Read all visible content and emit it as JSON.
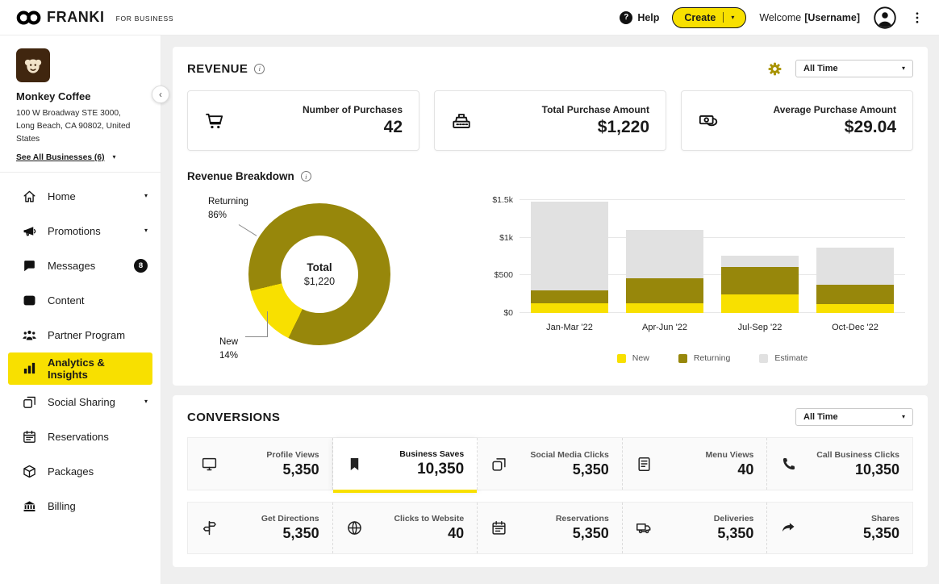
{
  "topbar": {
    "brand": "FRANKI",
    "tagline": "FOR BUSINESS",
    "help_label": "Help",
    "create_label": "Create",
    "welcome_prefix": "Welcome",
    "username": "[Username]"
  },
  "sidebar": {
    "business": {
      "name": "Monkey Coffee",
      "address_lines": [
        "100 W Broadway STE 3000,",
        "Long Beach, CA 90802, United",
        "States"
      ],
      "see_all": "See All Businesses (6)"
    },
    "items": [
      {
        "label": "Home",
        "icon": "home",
        "chevron": true
      },
      {
        "label": "Promotions",
        "icon": "megaphone",
        "chevron": true
      },
      {
        "label": "Messages",
        "icon": "chat",
        "badge": "8"
      },
      {
        "label": "Content",
        "icon": "content"
      },
      {
        "label": "Partner Program",
        "icon": "people"
      },
      {
        "label": "Analytics & Insights",
        "icon": "chart",
        "active": true
      },
      {
        "label": "Social Sharing",
        "icon": "social",
        "chevron": true
      },
      {
        "label": "Reservations",
        "icon": "calendar"
      },
      {
        "label": "Packages",
        "icon": "package"
      },
      {
        "label": "Billing",
        "icon": "billing"
      }
    ]
  },
  "revenue": {
    "title": "REVENUE",
    "time_filter": "All Time",
    "stats": [
      {
        "label": "Number of Purchases",
        "value": "42",
        "icon": "cart"
      },
      {
        "label": "Total Purchase Amount",
        "value": "$1,220",
        "icon": "register"
      },
      {
        "label": "Average Purchase Amount",
        "value": "$29.04",
        "icon": "money"
      }
    ],
    "breakdown_title": "Revenue Breakdown"
  },
  "chart_data": [
    {
      "type": "pie",
      "subtype": "donut",
      "labels": [
        "Returning",
        "New"
      ],
      "values": [
        86,
        14
      ],
      "pct_labels": [
        "86%",
        "14%"
      ],
      "center_label": "Total",
      "center_value": "$1,220",
      "colors": {
        "returning": "#97870B",
        "new": "#F8E000"
      },
      "wedge_start_deg": 206
    },
    {
      "type": "bar",
      "stacked": true,
      "categories": [
        "Jan-Mar '22",
        "Apr-Jun '22",
        "Jul-Sep '22",
        "Oct-Dec '22"
      ],
      "series": [
        {
          "name": "New",
          "color": "#F8E000",
          "values": [
            130,
            130,
            250,
            120
          ]
        },
        {
          "name": "Returning",
          "color": "#97870B",
          "values": [
            170,
            330,
            360,
            250
          ]
        },
        {
          "name": "Estimate",
          "color": "#E1E1E1",
          "values": [
            1180,
            640,
            150,
            500
          ]
        }
      ],
      "ylim": [
        0,
        1500
      ],
      "yticks": [
        {
          "value": 0,
          "label": "$0"
        },
        {
          "value": 500,
          "label": "$500"
        },
        {
          "value": 1000,
          "label": "$1k"
        },
        {
          "value": 1500,
          "label": "$1.5k"
        }
      ],
      "legend": [
        "New",
        "Returning",
        "Estimate"
      ],
      "legend_position": "bottom",
      "grid": true
    }
  ],
  "conversions": {
    "title": "CONVERSIONS",
    "time_filter": "All Time",
    "rows": [
      [
        {
          "label": "Profile Views",
          "value": "5,350",
          "icon": "monitor"
        },
        {
          "label": "Business Saves",
          "value": "10,350",
          "icon": "bookmark",
          "active": true
        },
        {
          "label": "Social Media Clicks",
          "value": "5,350",
          "icon": "social"
        },
        {
          "label": "Menu Views",
          "value": "40",
          "icon": "menu"
        },
        {
          "label": "Call Business Clicks",
          "value": "10,350",
          "icon": "phone"
        }
      ],
      [
        {
          "label": "Get Directions",
          "value": "5,350",
          "icon": "directions"
        },
        {
          "label": "Clicks to Website",
          "value": "40",
          "icon": "globe"
        },
        {
          "label": "Reservations",
          "value": "5,350",
          "icon": "calendar"
        },
        {
          "label": "Deliveries",
          "value": "5,350",
          "icon": "truck"
        },
        {
          "label": "Shares",
          "value": "5,350",
          "icon": "share"
        }
      ]
    ]
  }
}
